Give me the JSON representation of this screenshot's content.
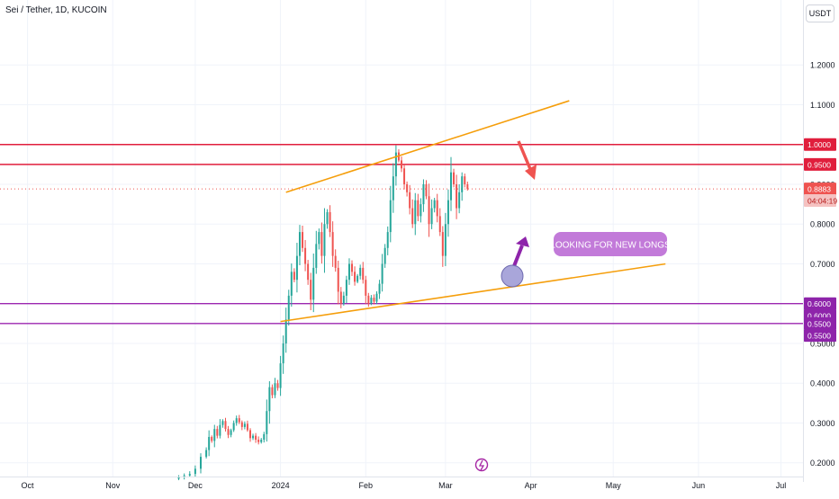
{
  "header": {
    "title": "Sei / Tether, 1D, KUCOIN",
    "currency": "USDT"
  },
  "colors": {
    "bull": "#26a69a",
    "bear": "#ef5350",
    "channel": "#f59e0b",
    "resistance": "#e01e3c",
    "support": "#9c27b0",
    "callout": "#c27ad9",
    "grid": "#f0f3fa"
  },
  "chart_data": {
    "type": "candlestick",
    "title": "Sei / Tether, 1D, KUCOIN",
    "xlabel": "",
    "ylabel": "",
    "ylim": [
      0.17,
      1.3
    ],
    "grid": true,
    "x_ticks": [
      {
        "label": "Oct",
        "date": "2023-10-01"
      },
      {
        "label": "Nov",
        "date": "2023-11-01"
      },
      {
        "label": "Dec",
        "date": "2023-12-01"
      },
      {
        "label": "2024",
        "date": "2024-01-01"
      },
      {
        "label": "Feb",
        "date": "2024-02-01"
      },
      {
        "label": "Mar",
        "date": "2024-03-01"
      },
      {
        "label": "Apr",
        "date": "2024-04-01"
      },
      {
        "label": "May",
        "date": "2024-05-01"
      },
      {
        "label": "Jun",
        "date": "2024-06-01"
      },
      {
        "label": "Jul",
        "date": "2024-07-01"
      }
    ],
    "y_ticks": [
      0.2,
      0.3,
      0.4,
      0.5,
      0.6,
      0.7,
      0.8,
      0.9,
      1.0,
      1.1,
      1.2
    ],
    "y_tick_labels": [
      "0.2000",
      "0.3000",
      "0.4000",
      "0.5000",
      "0.6000",
      "0.7000",
      "0.8000",
      "0.9000",
      "1.0000",
      "1.1000",
      "1.2000"
    ],
    "closes": [
      [
        "2023-11-25",
        0.165
      ],
      [
        "2023-11-27",
        0.168
      ],
      [
        "2023-11-29",
        0.172
      ],
      [
        "2023-12-01",
        0.185
      ],
      [
        "2023-12-03",
        0.215
      ],
      [
        "2023-12-05",
        0.232
      ],
      [
        "2023-12-06",
        0.265
      ],
      [
        "2023-12-07",
        0.255
      ],
      [
        "2023-12-08",
        0.285
      ],
      [
        "2023-12-09",
        0.268
      ],
      [
        "2023-12-10",
        0.295
      ],
      [
        "2023-12-11",
        0.305
      ],
      [
        "2023-12-12",
        0.285
      ],
      [
        "2023-12-13",
        0.27
      ],
      [
        "2023-12-14",
        0.282
      ],
      [
        "2023-12-15",
        0.3
      ],
      [
        "2023-12-16",
        0.312
      ],
      [
        "2023-12-17",
        0.302
      ],
      [
        "2023-12-18",
        0.29
      ],
      [
        "2023-12-19",
        0.298
      ],
      [
        "2023-12-20",
        0.282
      ],
      [
        "2023-12-21",
        0.262
      ],
      [
        "2023-12-22",
        0.268
      ],
      [
        "2023-12-23",
        0.258
      ],
      [
        "2023-12-24",
        0.252
      ],
      [
        "2023-12-25",
        0.258
      ],
      [
        "2023-12-26",
        0.272
      ],
      [
        "2023-12-27",
        0.33
      ],
      [
        "2023-12-28",
        0.39
      ],
      [
        "2023-12-29",
        0.37
      ],
      [
        "2023-12-30",
        0.4
      ],
      [
        "2023-12-31",
        0.388
      ],
      [
        "2024-01-01",
        0.45
      ],
      [
        "2024-01-02",
        0.5
      ],
      [
        "2024-01-03",
        0.56
      ],
      [
        "2024-01-04",
        0.62
      ],
      [
        "2024-01-05",
        0.68
      ],
      [
        "2024-01-06",
        0.66
      ],
      [
        "2024-01-07",
        0.72
      ],
      [
        "2024-01-08",
        0.78
      ],
      [
        "2024-01-09",
        0.74
      ],
      [
        "2024-01-10",
        0.7
      ],
      [
        "2024-01-11",
        0.66
      ],
      [
        "2024-01-12",
        0.61
      ],
      [
        "2024-01-13",
        0.69
      ],
      [
        "2024-01-14",
        0.75
      ],
      [
        "2024-01-15",
        0.78
      ],
      [
        "2024-01-16",
        0.72
      ],
      [
        "2024-01-17",
        0.8
      ],
      [
        "2024-01-18",
        0.83
      ],
      [
        "2024-01-19",
        0.78
      ],
      [
        "2024-01-20",
        0.72
      ],
      [
        "2024-01-21",
        0.69
      ],
      [
        "2024-01-22",
        0.63
      ],
      [
        "2024-01-23",
        0.6
      ],
      [
        "2024-01-24",
        0.62
      ],
      [
        "2024-01-25",
        0.66
      ],
      [
        "2024-01-26",
        0.7
      ],
      [
        "2024-01-27",
        0.68
      ],
      [
        "2024-01-28",
        0.655
      ],
      [
        "2024-01-29",
        0.67
      ],
      [
        "2024-01-30",
        0.69
      ],
      [
        "2024-01-31",
        0.66
      ],
      [
        "2024-02-01",
        0.62
      ],
      [
        "2024-02-02",
        0.6
      ],
      [
        "2024-02-03",
        0.615
      ],
      [
        "2024-02-04",
        0.605
      ],
      [
        "2024-02-05",
        0.625
      ],
      [
        "2024-02-06",
        0.65
      ],
      [
        "2024-02-07",
        0.7
      ],
      [
        "2024-02-08",
        0.74
      ],
      [
        "2024-02-09",
        0.78
      ],
      [
        "2024-02-10",
        0.86
      ],
      [
        "2024-02-11",
        0.92
      ],
      [
        "2024-02-12",
        0.98
      ],
      [
        "2024-02-13",
        0.96
      ],
      [
        "2024-02-14",
        0.94
      ],
      [
        "2024-02-15",
        0.9
      ],
      [
        "2024-02-16",
        0.88
      ],
      [
        "2024-02-17",
        0.84
      ],
      [
        "2024-02-18",
        0.8
      ],
      [
        "2024-02-19",
        0.86
      ],
      [
        "2024-02-20",
        0.82
      ],
      [
        "2024-02-21",
        0.85
      ],
      [
        "2024-02-22",
        0.9
      ],
      [
        "2024-02-23",
        0.87
      ],
      [
        "2024-02-24",
        0.8
      ],
      [
        "2024-02-25",
        0.84
      ],
      [
        "2024-02-26",
        0.86
      ],
      [
        "2024-02-27",
        0.82
      ],
      [
        "2024-02-28",
        0.78
      ],
      [
        "2024-02-29",
        0.72
      ],
      [
        "2024-03-01",
        0.8
      ],
      [
        "2024-03-02",
        0.86
      ],
      [
        "2024-03-03",
        0.93
      ],
      [
        "2024-03-04",
        0.9
      ],
      [
        "2024-03-05",
        0.84
      ],
      [
        "2024-03-06",
        0.88
      ],
      [
        "2024-03-07",
        0.92
      ],
      [
        "2024-03-08",
        0.9
      ],
      [
        "2024-03-09",
        0.888
      ]
    ],
    "price_labels": [
      {
        "text": "1.0000",
        "y": 1.0,
        "kind": "resistance"
      },
      {
        "text": "0.9500",
        "y": 0.95,
        "kind": "resistance"
      },
      {
        "text": "0.8883",
        "y": 0.8883,
        "kind": "last"
      },
      {
        "text": "04:04:19",
        "y": 0.8593,
        "kind": "countdown"
      },
      {
        "text": "0.6000",
        "y": 0.6,
        "kind": "support"
      },
      {
        "text": "0.6000",
        "y": 0.57,
        "kind": "support"
      },
      {
        "text": "0.5500",
        "y": 0.55,
        "kind": "support"
      },
      {
        "text": "0.5500",
        "y": 0.52,
        "kind": "support"
      }
    ],
    "horizontal_lines": [
      {
        "kind": "resistance",
        "y": 1.0
      },
      {
        "kind": "resistance",
        "y": 0.95
      },
      {
        "kind": "support",
        "y": 0.6
      },
      {
        "kind": "support",
        "y": 0.55
      },
      {
        "kind": "last",
        "y": 0.8883
      }
    ],
    "trendlines": [
      {
        "name": "upper-channel",
        "from": [
          "2024-01-03",
          0.88
        ],
        "to": [
          "2024-04-15",
          1.11
        ]
      },
      {
        "name": "lower-channel",
        "from": [
          "2024-01-01",
          0.555
        ],
        "to": [
          "2024-05-20",
          0.7
        ]
      }
    ],
    "annotations": [
      {
        "text": "LOOKING FOR NEW LONGS",
        "anchor": [
          "2024-04-11",
          0.73
        ]
      }
    ]
  }
}
